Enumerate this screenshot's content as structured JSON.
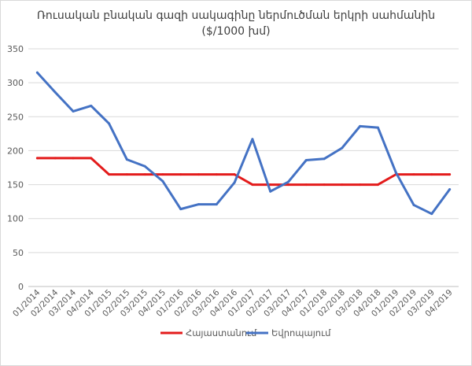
{
  "chart_data": {
    "type": "line",
    "title_line1": "Ռուսական բնական գազի սակագինը ներմուծման երկրի սահմանին",
    "title_line2": "($/1000 խմ)",
    "xlabel": "",
    "ylabel": "",
    "ylim": [
      0,
      350
    ],
    "yticks": [
      0,
      50,
      100,
      150,
      200,
      250,
      300,
      350
    ],
    "grid": true,
    "legend_position": "bottom",
    "categories": [
      "01/2014",
      "02/2014",
      "03/2014",
      "04/2014",
      "01/2015",
      "02/2015",
      "03/2015",
      "04/2015",
      "01/2016",
      "02/2016",
      "03/2016",
      "04/2016",
      "01/2017",
      "02/2017",
      "03/2017",
      "04/2017",
      "01/2018",
      "02/2018",
      "03/2018",
      "04/2018",
      "01/2019",
      "02/2019",
      "03/2019",
      "04/2019"
    ],
    "series": [
      {
        "name": "Հայաստանում",
        "color": "#e31b1b",
        "values": [
          189,
          189,
          189,
          189,
          165,
          165,
          165,
          165,
          165,
          165,
          165,
          165,
          150,
          150,
          150,
          150,
          150,
          150,
          150,
          150,
          165,
          165,
          165,
          165
        ]
      },
      {
        "name": "Եվրոպայում",
        "color": "#4472c4",
        "values": [
          315,
          286,
          258,
          266,
          240,
          187,
          177,
          155,
          114,
          121,
          121,
          153,
          217,
          140,
          154,
          186,
          188,
          204,
          236,
          234,
          168,
          120,
          107,
          143
        ]
      }
    ]
  }
}
